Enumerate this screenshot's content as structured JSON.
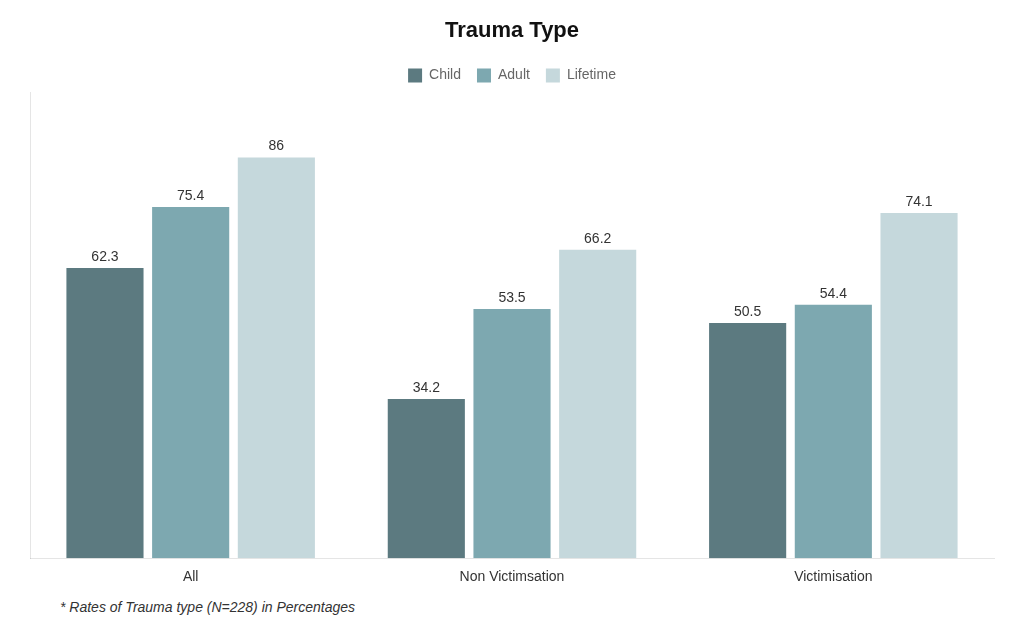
{
  "chart_data": {
    "type": "bar",
    "title": "Trauma Type",
    "categories": [
      "All",
      "Non Victimsation",
      "Victimisation"
    ],
    "series": [
      {
        "name": "Child",
        "color": "#5c7a80",
        "values": [
          62.3,
          34.2,
          50.5
        ]
      },
      {
        "name": "Adult",
        "color": "#7da8b0",
        "values": [
          75.4,
          53.5,
          54.4
        ]
      },
      {
        "name": "Lifetime",
        "color": "#c5d8dc",
        "values": [
          86.0,
          66.2,
          74.1
        ]
      }
    ],
    "ylim": [
      0,
      100
    ],
    "grid": false,
    "legend": "top",
    "data_labels": true,
    "tick_labels": "x",
    "annotations": [
      "* Rates of Trauma type (N=228) in Percentages"
    ]
  }
}
